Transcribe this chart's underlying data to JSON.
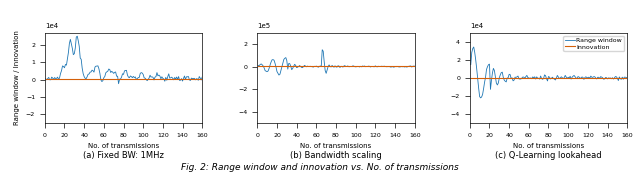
{
  "title": "Fig. 2: Range window and innovation vs. No. of transmissions",
  "n_transmissions": 160,
  "subplot_titles": [
    "(a) Fixed BW: 1MHz",
    "(b) Bandwidth scaling",
    "(c) Q-Learning lookahead"
  ],
  "xlabel": "No. of transmissions",
  "ylabel": "Range window / Innovation",
  "blue_color": "#1f77b4",
  "orange_color": "#d4600a",
  "legend_labels": [
    "Range window",
    "Innovation"
  ],
  "plot1_ylim": [
    -25000.0,
    27000.0
  ],
  "plot1_ytick_exp": 4,
  "plot2_ylim": [
    -500000.0,
    300000.0
  ],
  "plot2_ytick_exp": 5,
  "plot3_ylim": [
    -50000.0,
    50000.0
  ],
  "plot3_ytick_exp": 4,
  "seed1": 42,
  "seed2": 7,
  "seed3": 99
}
